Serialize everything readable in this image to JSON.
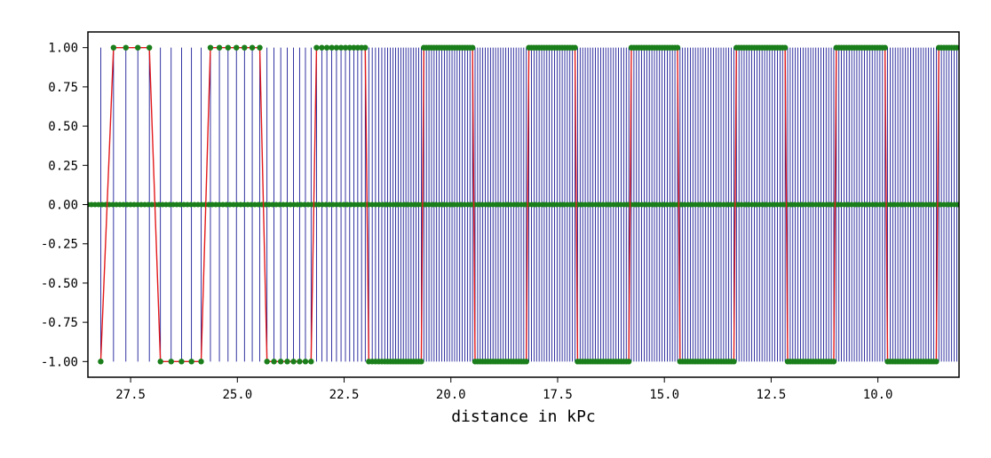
{
  "chart_data": {
    "type": "line",
    "title": "",
    "xlabel": "distance in kPc",
    "ylabel": "",
    "x_inverted": true,
    "xlim": [
      28.5,
      8.1
    ],
    "ylim": [
      -1.1,
      1.1
    ],
    "grid": false,
    "x_ticks": [
      27.5,
      25.0,
      22.5,
      20.0,
      17.5,
      15.0,
      12.5,
      10.0
    ],
    "x_tick_labels": [
      "27.5",
      "25.0",
      "22.5",
      "20.0",
      "17.5",
      "15.0",
      "12.5",
      "10.0"
    ],
    "y_ticks": [
      1.0,
      0.75,
      0.5,
      0.25,
      0.0,
      -0.25,
      -0.5,
      -0.75,
      -1.0
    ],
    "y_tick_labels": [
      "1.00",
      "0.75",
      "0.50",
      "0.25",
      "0.00",
      "-0.25",
      "-0.50",
      "-0.75",
      "-1.00"
    ],
    "colors": {
      "vlines": "#00008b",
      "signal": "#e31a1c",
      "markers": "#1a7f1a",
      "zero_line": "#1a7f1a",
      "frame": "#000000"
    },
    "signal": {
      "description_in_data_units": "square wave of +/-1 sampled at points; sample spacing shrinks with decreasing distance",
      "start_x": 28.2,
      "end_x": 8.1,
      "initial_spacing": 0.3,
      "spacing_decay": 0.965,
      "min_spacing": 0.06,
      "segments": [
        {
          "from": 28.5,
          "to": 28.15,
          "value": -1
        },
        {
          "from": 27.95,
          "to": 27.1,
          "value": 1
        },
        {
          "from": 26.75,
          "to": 25.8,
          "value": -1
        },
        {
          "from": 25.6,
          "to": 24.55,
          "value": 1
        },
        {
          "from": 24.2,
          "to": 23.3,
          "value": -1
        },
        {
          "from": 23.1,
          "to": 22.1,
          "value": 1
        },
        {
          "from": 21.9,
          "to": 20.7,
          "value": -1
        },
        {
          "from": 20.6,
          "to": 19.55,
          "value": 1
        },
        {
          "from": 19.35,
          "to": 18.25,
          "value": -1
        },
        {
          "from": 18.15,
          "to": 17.15,
          "value": 1
        },
        {
          "from": 16.95,
          "to": 15.85,
          "value": -1
        },
        {
          "from": 15.75,
          "to": 14.75,
          "value": 1
        },
        {
          "from": 14.55,
          "to": 13.4,
          "value": -1
        },
        {
          "from": 13.3,
          "to": 12.2,
          "value": 1
        },
        {
          "from": 12.1,
          "to": 11.0,
          "value": -1
        },
        {
          "from": 10.95,
          "to": 9.8,
          "value": 1
        },
        {
          "from": 9.75,
          "to": 8.6,
          "value": -1
        },
        {
          "from": 8.55,
          "to": 8.1,
          "value": 1
        }
      ]
    }
  }
}
